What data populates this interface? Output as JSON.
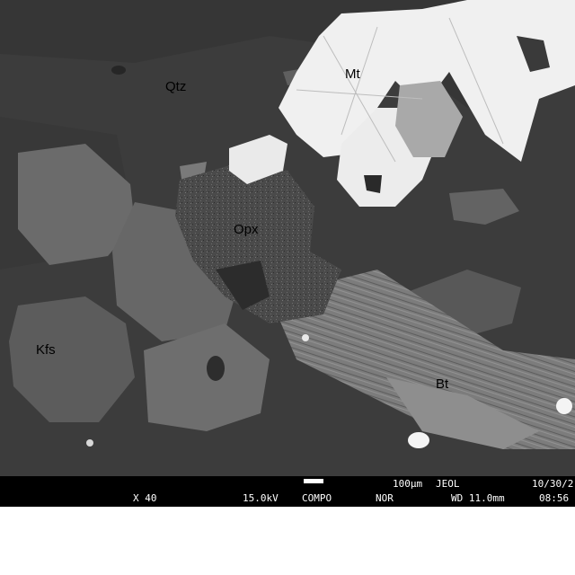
{
  "labels": {
    "qtz": "Qtz",
    "mt": "Mt",
    "opx": "Opx",
    "kfs": "Kfs",
    "bt": "Bt"
  },
  "info_bar": {
    "scale_text": "100µm",
    "maker": "JEOL",
    "date": "10/30/2",
    "magnification": "X 40",
    "voltage": "15.0kV",
    "mode": "COMPO",
    "signal": "NOR",
    "working_distance": "WD 11.0mm",
    "time": "08:56"
  },
  "colors": {
    "quartz_matrix": "#3b3b3b",
    "feldspar": "#6a6a6a",
    "biotite": "#8a8a8a",
    "magnetite": "#f2f2f2",
    "orthopyroxene": "#4e4e4e",
    "info_bar": "#000000"
  }
}
